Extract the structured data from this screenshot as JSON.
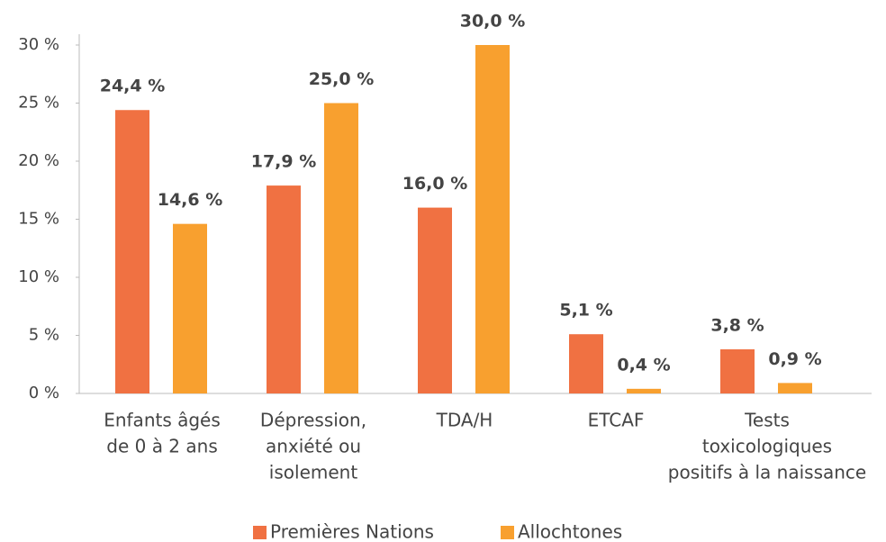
{
  "chart_data": {
    "type": "bar",
    "categories": [
      [
        "Enfants âgés",
        "de 0 à 2 ans"
      ],
      [
        "Dépression,",
        "anxiété ou",
        "isolement"
      ],
      [
        "TDA/H"
      ],
      [
        "ETCAF"
      ],
      [
        "Tests",
        "toxicologiques",
        "positifs à la naissance"
      ]
    ],
    "series": [
      {
        "name": "Premières Nations",
        "color": "#f07142",
        "values": [
          24.4,
          17.9,
          16.0,
          5.1,
          3.8
        ],
        "value_labels": [
          "24,4 %",
          "17,9 %",
          "16,0 %",
          "5,1 %",
          "3,8 %"
        ]
      },
      {
        "name": "Allochtones",
        "color": "#f8a02f",
        "values": [
          14.6,
          25.0,
          30.0,
          0.4,
          0.9
        ],
        "value_labels": [
          "14,6 %",
          "25,0 %",
          "30,0 %",
          "0,4 %",
          "0,9 %"
        ]
      }
    ],
    "ylim": [
      0,
      30
    ],
    "yticks": [
      {
        "value": 0,
        "label": "0 %"
      },
      {
        "value": 5,
        "label": "5 %"
      },
      {
        "value": 10,
        "label": "10 %"
      },
      {
        "value": 15,
        "label": "15 %"
      },
      {
        "value": 20,
        "label": "20 %"
      },
      {
        "value": 25,
        "label": "25 %"
      },
      {
        "value": 30,
        "label": "30 %"
      }
    ],
    "legend": "bottom"
  }
}
